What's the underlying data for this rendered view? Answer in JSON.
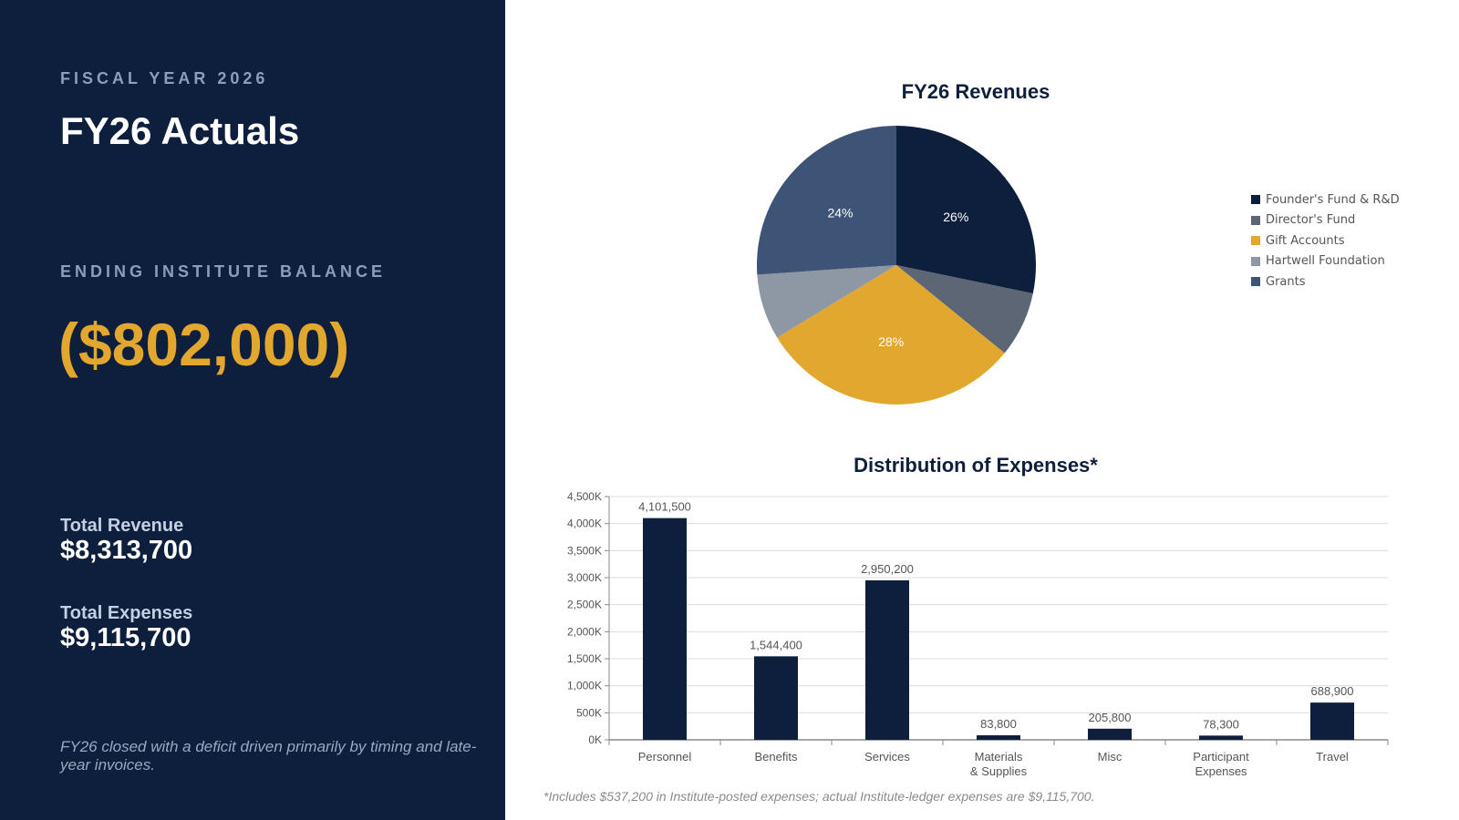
{
  "left": {
    "kicker": "FISCAL YEAR 2026",
    "title": "FY26 Actuals",
    "balance_label": "ENDING INSTITUTE BALANCE",
    "balance_value": "($802,000)",
    "revenue_label": "Total Revenue",
    "revenue_value": "$8,313,700",
    "expenses_label": "Total Expenses",
    "expenses_value": "$9,115,700",
    "note": "FY26 closed with a deficit driven primarily by timing and late-year invoices."
  },
  "colors": {
    "navy": "#0d1f3c",
    "gold": "#e2a72e",
    "slate": "#5c6675",
    "gray": "#8e98a4",
    "steel": "#3e5476"
  },
  "footnote": "*Includes $537,200 in Institute-posted expenses; actual Institute-ledger expenses are $9,115,700.",
  "chart_data": [
    {
      "type": "pie",
      "title": "FY26 Revenues",
      "legend_position": "right",
      "slices": [
        {
          "label": "Founder's Fund & R&D",
          "value": 26,
          "display": "26%",
          "color": "#0d1f3c"
        },
        {
          "label": "Director's Fund",
          "value": 7,
          "display": "",
          "color": "#5c6675"
        },
        {
          "label": "Gift Accounts",
          "value": 28,
          "display": "28%",
          "color": "#e2a72e"
        },
        {
          "label": "Hartwell Foundation",
          "value": 7,
          "display": "",
          "color": "#8e98a4"
        },
        {
          "label": "Grants",
          "value": 24,
          "display": "24%",
          "color": "#3e5476"
        }
      ]
    },
    {
      "type": "bar",
      "title": "Distribution of Expenses*",
      "categories": [
        [
          "Personnel"
        ],
        [
          "Benefits"
        ],
        [
          "Services"
        ],
        [
          "Materials",
          "& Supplies"
        ],
        [
          "Misc"
        ],
        [
          "Participant",
          "Expenses"
        ],
        [
          "Travel"
        ]
      ],
      "values": [
        4101500,
        1544400,
        2950200,
        83800,
        205800,
        78300,
        688900
      ],
      "value_labels": [
        "4,101,500",
        "1,544,400",
        "2,950,200",
        "83,800",
        "205,800",
        "78,300",
        "688,900"
      ],
      "ylim": [
        0,
        4500000
      ],
      "yticks": [
        0,
        500000,
        1000000,
        1500000,
        2000000,
        2500000,
        3000000,
        3500000,
        4000000,
        4500000
      ],
      "ytick_labels": [
        "0K",
        "500K",
        "1,000K",
        "1,500K",
        "2,000K",
        "2,500K",
        "3,000K",
        "3,500K",
        "4,000K",
        "4,500K"
      ],
      "grid": true,
      "bar_color": "#0d1f3c"
    }
  ]
}
